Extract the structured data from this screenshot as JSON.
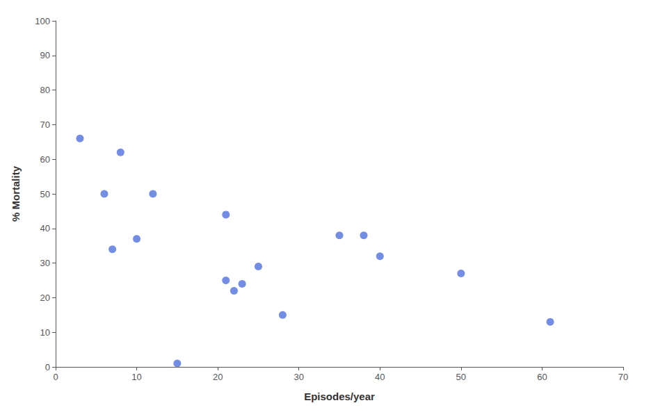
{
  "chart_data": {
    "type": "scatter",
    "x": [
      3,
      6,
      7,
      8,
      10,
      12,
      15,
      21,
      21,
      22,
      23,
      25,
      28,
      35,
      38,
      40,
      50,
      61
    ],
    "values": [
      66,
      50,
      34,
      62,
      37,
      50,
      1,
      44,
      25,
      22,
      24,
      29,
      15,
      38,
      38,
      32,
      27,
      13
    ],
    "xlabel": "Episodes/year",
    "ylabel": "% Mortality",
    "xlim": [
      0,
      70
    ],
    "ylim": [
      0,
      100
    ],
    "xticks": [
      0,
      10,
      20,
      30,
      40,
      50,
      60,
      70
    ],
    "yticks": [
      0,
      10,
      20,
      30,
      40,
      50,
      60,
      70,
      80,
      90,
      100
    ],
    "grid": false
  }
}
